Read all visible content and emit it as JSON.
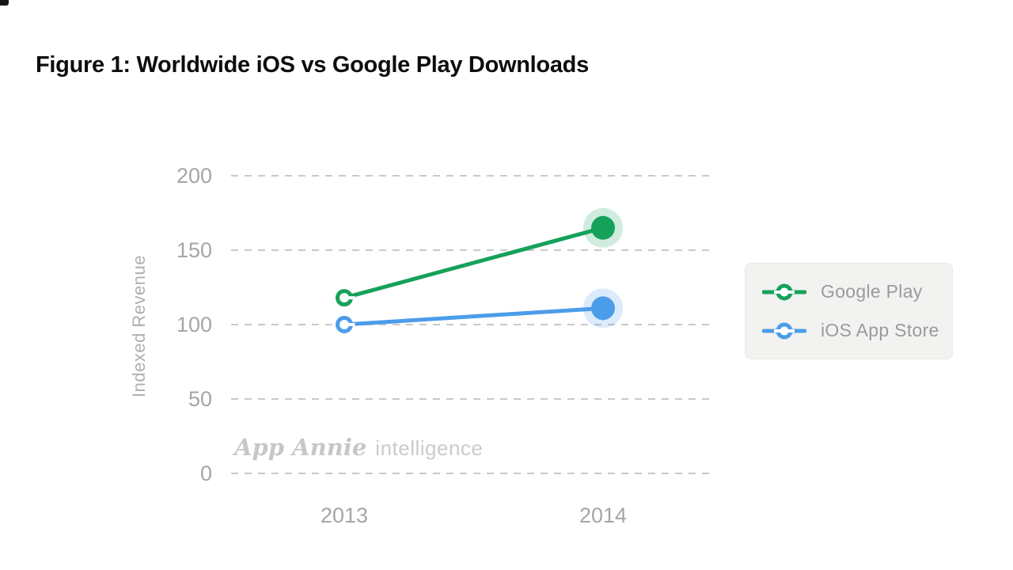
{
  "page": {
    "title": "Figure 1: Worldwide iOS vs Google Play Downloads"
  },
  "watermark": {
    "brand": "App Annie",
    "suffix": "intelligence"
  },
  "colors": {
    "google_play": "#16A15B",
    "ios_app_store": "#4C9DE9",
    "grid_line": "#C9C9C9",
    "axis_tick_text": "#A6A6A6",
    "axis_title_text": "#AFAFAF",
    "title_text": "#0D0D0D",
    "legend_bg": "#F2F2F0",
    "legend_text": "#9B9B9B",
    "watermark_text": "#C8C8C8"
  },
  "chart_data": {
    "type": "line",
    "title": "Figure 1: Worldwide iOS vs Google Play Downloads",
    "categories": [
      "2013",
      "2014"
    ],
    "series": [
      {
        "name": "Google Play",
        "color": "#16A15B",
        "values": [
          118,
          165
        ]
      },
      {
        "name": "iOS App Store",
        "color": "#4C9DE9",
        "values": [
          100,
          111
        ]
      }
    ],
    "xlabel": "",
    "ylabel": "Indexed Revenue",
    "yticks": [
      0,
      50,
      100,
      150,
      200
    ],
    "ylim": [
      0,
      200
    ],
    "grid": "horizontal-dashed",
    "legend_position": "right",
    "marker_style": {
      "first_point": "open-circle",
      "last_point": "filled-circle-halo"
    }
  },
  "legend": {
    "items": [
      {
        "label": "Google Play",
        "color": "#16A15B"
      },
      {
        "label": "iOS App Store",
        "color": "#4C9DE9"
      }
    ]
  }
}
